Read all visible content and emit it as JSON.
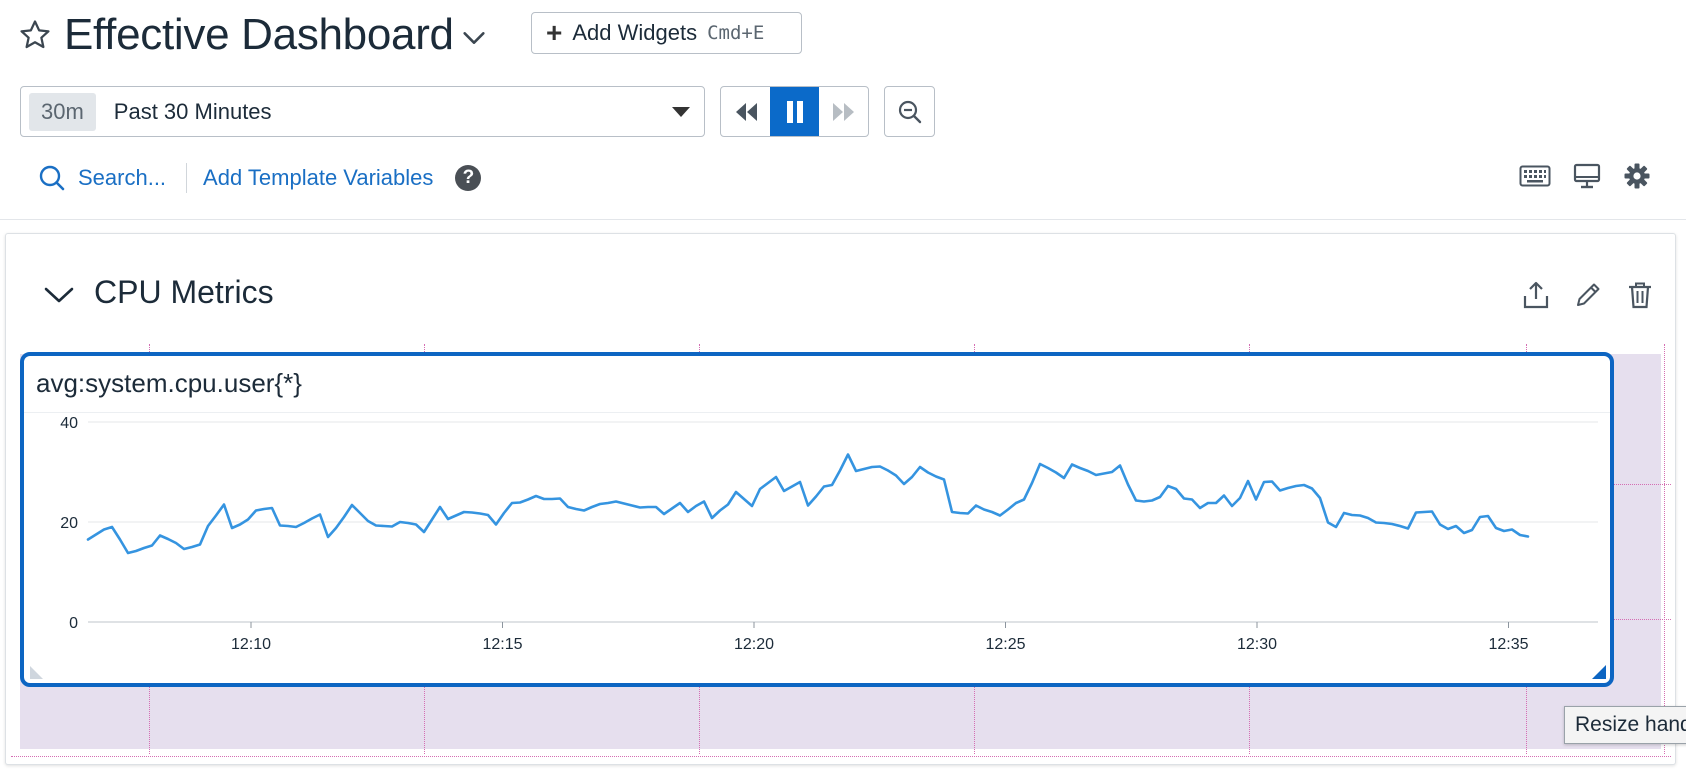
{
  "header": {
    "title": "Effective Dashboard",
    "add_widgets_label": "Add Widgets",
    "add_widgets_shortcut": "Cmd+E"
  },
  "time": {
    "badge": "30m",
    "label": "Past 30 Minutes"
  },
  "search": {
    "label": "Search...",
    "template_vars": "Add Template Variables",
    "help": "?"
  },
  "group": {
    "title": "CPU Metrics"
  },
  "widget": {
    "title": "avg:system.cpu.user{*}"
  },
  "tooltip": {
    "text": "Resize handle"
  },
  "colors": {
    "accent": "#0d65c2",
    "series": "#3594e0",
    "drop_area": "#e6dfee"
  },
  "chart_data": {
    "type": "line",
    "title": "avg:system.cpu.user{*}",
    "xlabel": "",
    "ylabel": "",
    "ylim": [
      0,
      40
    ],
    "yticks": [
      "0",
      "20",
      "40"
    ],
    "xticks": [
      "12:10",
      "12:15",
      "12:20",
      "12:25",
      "12:30",
      "12:35"
    ],
    "grid": true,
    "series": [
      {
        "values": [
          16.5,
          17.5,
          18.5,
          19.0,
          16.5,
          13.8,
          14.2,
          14.8,
          15.3,
          17.3,
          16.6,
          15.8,
          14.6,
          15.0,
          15.5,
          19.2,
          21.3,
          23.5,
          18.8,
          19.5,
          20.5,
          22.3,
          22.6,
          22.8,
          19.3,
          19.2,
          19.0,
          19.8,
          20.7,
          21.5,
          17.0,
          18.8,
          21.0,
          23.4,
          21.8,
          20.2,
          19.3,
          19.2,
          19.1,
          20.0,
          19.8,
          19.5,
          18.0,
          20.5,
          23.0,
          20.6,
          21.3,
          22.0,
          21.9,
          21.7,
          21.4,
          19.5,
          21.8,
          23.8,
          23.9,
          24.5,
          25.2,
          24.6,
          24.6,
          24.7,
          23.0,
          22.6,
          22.3,
          23.0,
          23.6,
          23.8,
          24.1,
          23.7,
          23.3,
          22.9,
          23.0,
          23.0,
          21.6,
          22.7,
          23.8,
          22.0,
          23.2,
          24.1,
          20.8,
          22.3,
          23.5,
          26.0,
          24.6,
          23.2,
          26.6,
          27.8,
          29.0,
          26.2,
          27.1,
          28.0,
          23.3,
          25.1,
          27.1,
          27.4,
          30.3,
          33.5,
          30.2,
          30.6,
          31.0,
          31.1,
          30.3,
          29.3,
          27.6,
          29.0,
          31.0,
          29.9,
          29.1,
          28.5,
          22.0,
          21.8,
          21.7,
          23.3,
          22.5,
          22.0,
          21.3,
          22.5,
          23.8,
          24.5,
          27.8,
          31.6,
          30.8,
          29.9,
          28.8,
          31.5,
          30.8,
          30.2,
          29.4,
          29.7,
          30.0,
          31.3,
          27.5,
          24.3,
          24.1,
          24.3,
          25.0,
          27.2,
          26.6,
          24.7,
          24.5,
          22.8,
          23.8,
          23.8,
          25.3,
          23.2,
          24.8,
          28.2,
          24.5,
          28.0,
          28.1,
          26.3,
          26.8,
          27.2,
          27.4,
          26.7,
          24.8,
          19.9,
          19.0,
          21.8,
          21.4,
          21.3,
          20.8,
          19.9,
          19.8,
          19.6,
          19.2,
          18.7,
          21.9,
          22.0,
          22.1,
          19.5,
          18.6,
          19.2,
          17.8,
          18.4,
          21.0,
          21.2,
          18.8,
          18.2,
          18.5,
          17.4,
          17.1
        ]
      }
    ]
  }
}
